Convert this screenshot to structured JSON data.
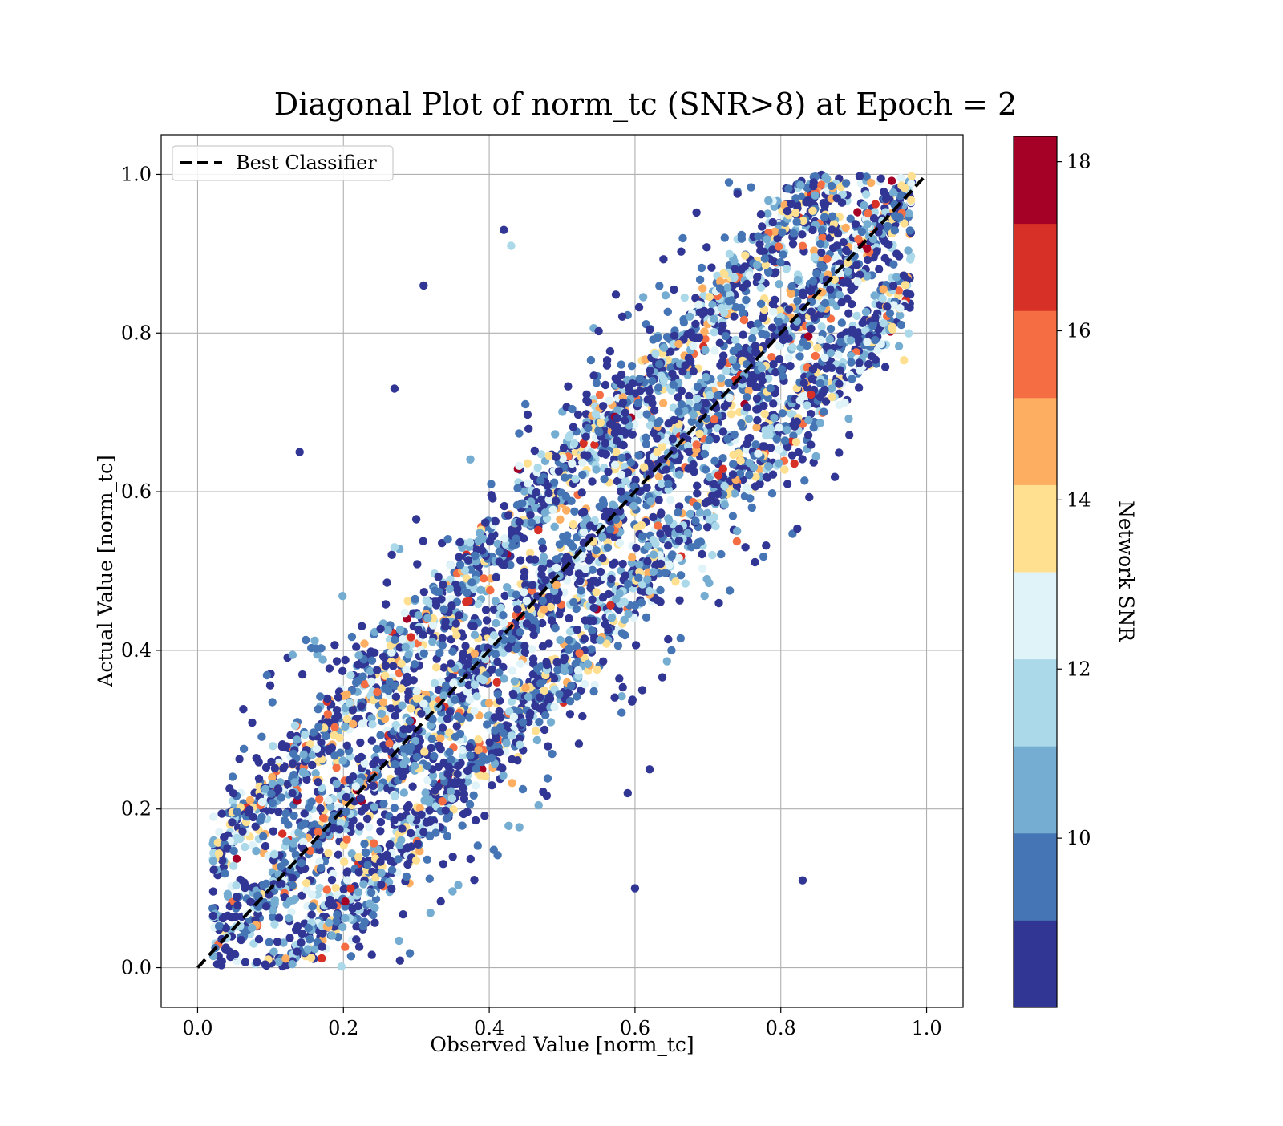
{
  "chart_data": {
    "type": "scatter",
    "title": "Diagonal Plot of norm_tc (SNR>8) at Epoch = 2",
    "xlabel": "Observed Value [norm_tc]",
    "ylabel": "Actual Value [norm_tc]",
    "xlim": [
      -0.05,
      1.05
    ],
    "ylim": [
      -0.05,
      1.05
    ],
    "xticks": [
      0.0,
      0.2,
      0.4,
      0.6,
      0.8,
      1.0
    ],
    "yticks": [
      0.0,
      0.2,
      0.4,
      0.6,
      0.8,
      1.0
    ],
    "xtick_labels": [
      "0.0",
      "0.2",
      "0.4",
      "0.6",
      "0.8",
      "1.0"
    ],
    "ytick_labels": [
      "0.0",
      "0.2",
      "0.4",
      "0.6",
      "0.8",
      "1.0"
    ],
    "grid": true,
    "legend": {
      "placement": "upper-left",
      "entries": [
        {
          "label": "Best Classifier",
          "style": "dashed",
          "color": "#000000"
        }
      ]
    },
    "reference_line": {
      "label": "Best Classifier",
      "x": [
        0.0,
        1.0
      ],
      "y": [
        0.0,
        1.0
      ],
      "color": "#000000",
      "style": "dashed"
    },
    "colorbar": {
      "label": "Network SNR",
      "range": [
        8,
        18.3
      ],
      "ticks": [
        10,
        12,
        14,
        16,
        18
      ],
      "tick_labels": [
        "10",
        "12",
        "14",
        "16",
        "18"
      ],
      "colors": [
        "#313695",
        "#4575b4",
        "#74add1",
        "#abd9e9",
        "#e0f3f8",
        "#fee090",
        "#fdae61",
        "#f46d43",
        "#d73027",
        "#a50026"
      ]
    },
    "notes_bands": "Points follow three diagonal bands: y≈x+0.12 (upper), y≈x (main), y≈x-0.12 (lower), plus scattered low-SNR outliers.",
    "sample_outliers": [
      {
        "x": 0.14,
        "y": 0.65,
        "snr": 8.5
      },
      {
        "x": 0.27,
        "y": 0.73,
        "snr": 8.5
      },
      {
        "x": 0.31,
        "y": 0.86,
        "snr": 8.5
      },
      {
        "x": 0.83,
        "y": 0.11,
        "snr": 8.5
      },
      {
        "x": 0.42,
        "y": 0.93,
        "snr": 8.5
      },
      {
        "x": 0.6,
        "y": 0.1,
        "snr": 8.5
      },
      {
        "x": 0.61,
        "y": 0.35,
        "snr": 8.5
      },
      {
        "x": 0.65,
        "y": 0.4,
        "snr": 9.5
      },
      {
        "x": 0.43,
        "y": 0.91,
        "snr": 11.5
      },
      {
        "x": 0.27,
        "y": 0.53,
        "snr": 11.5
      },
      {
        "x": 0.59,
        "y": 0.22,
        "snr": 8.5
      },
      {
        "x": 0.62,
        "y": 0.25,
        "snr": 8.5
      }
    ]
  }
}
